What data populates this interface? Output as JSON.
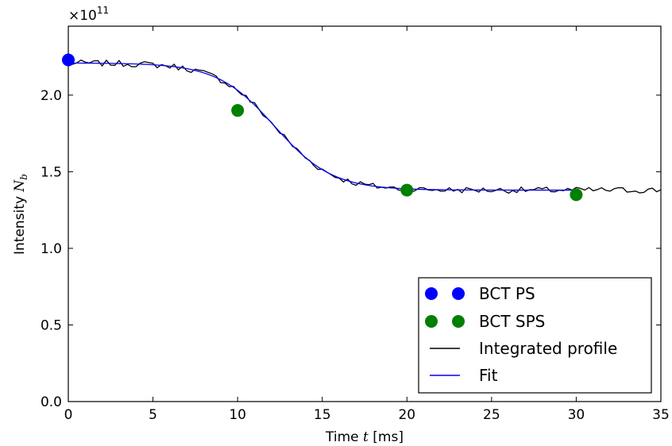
{
  "chart_data": {
    "type": "line",
    "xlabel_prefix": "Time ",
    "xlabel_var": "t",
    "xlabel_suffix": " [ms]",
    "ylabel_prefix": "Intensity ",
    "ylabel_var": "N",
    "ylabel_sub": "b",
    "y_multiplier": "×10",
    "y_multiplier_exp": "11",
    "xlim": [
      0,
      35
    ],
    "ylim": [
      0,
      2.45
    ],
    "xticks": [
      "0",
      "5",
      "10",
      "15",
      "20",
      "25",
      "30",
      "35"
    ],
    "yticks": [
      "0.0",
      "0.5",
      "1.0",
      "1.5",
      "2.0"
    ],
    "grid": false,
    "legend_position": "lower-right",
    "series": [
      {
        "name": "BCT PS",
        "kind": "scatter",
        "color": "#0000ff",
        "points": [
          [
            0,
            2.23
          ]
        ]
      },
      {
        "name": "BCT SPS",
        "kind": "scatter",
        "color": "#008000",
        "points": [
          [
            10,
            1.9
          ],
          [
            20,
            1.38
          ],
          [
            30,
            1.35
          ]
        ]
      },
      {
        "name": "Integrated profile",
        "kind": "line",
        "color": "#000000",
        "model": {
          "a": 2.21,
          "b": 1.38,
          "x0": 12.2,
          "w": 1.7
        },
        "noise_amplitude": 0.02,
        "step": 0.25
      },
      {
        "name": "Fit",
        "kind": "line",
        "color": "#0000ff",
        "model": {
          "a": 2.21,
          "b": 1.38,
          "x0": 12.2,
          "w": 1.7
        },
        "x_range": [
          0,
          30
        ],
        "step": 0.2
      }
    ]
  }
}
